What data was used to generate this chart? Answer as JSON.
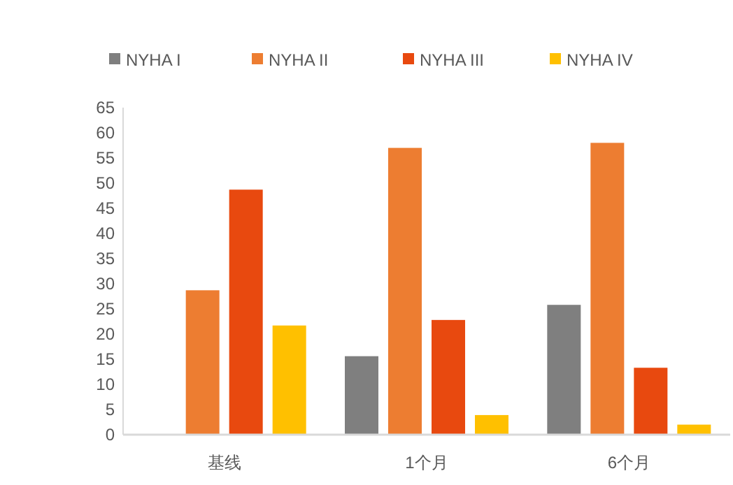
{
  "chart_data": {
    "type": "bar",
    "categories": [
      "基线",
      "1个月",
      "6个月"
    ],
    "series": [
      {
        "name": "NYHA I",
        "color": "#7f7f7f",
        "values": [
          0,
          15.6,
          25.8
        ]
      },
      {
        "name": "NYHA II",
        "color": "#ed7d31",
        "values": [
          28.7,
          57,
          58
        ]
      },
      {
        "name": "NYHA III",
        "color": "#e8490f",
        "values": [
          48.7,
          22.8,
          13.3
        ]
      },
      {
        "name": "NYHA IV",
        "color": "#ffc000",
        "values": [
          21.7,
          3.9,
          2
        ]
      }
    ],
    "ylim": [
      0,
      65
    ],
    "yticks": [
      0,
      5,
      10,
      15,
      20,
      25,
      30,
      35,
      40,
      45,
      50,
      55,
      60,
      65
    ],
    "legend": "top"
  }
}
